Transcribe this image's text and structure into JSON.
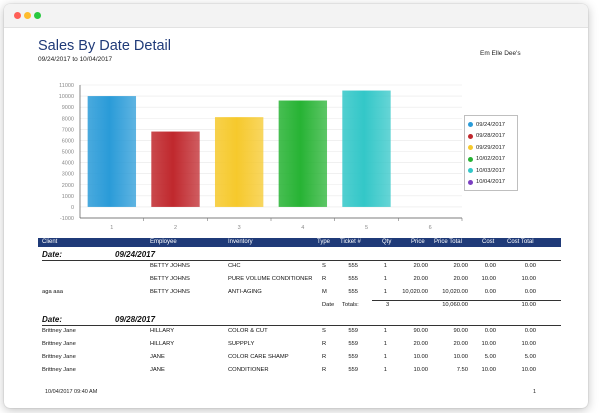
{
  "report": {
    "title": "Sales By Date Detail",
    "date_range": "09/24/2017 to 10/04/2017",
    "company": "Em Elle Dee's",
    "footer_timestamp": "10/04/2017 09:40 AM",
    "page_number": "1"
  },
  "chart_data": {
    "type": "bar",
    "categories": [
      "1",
      "2",
      "3",
      "4",
      "5",
      "6"
    ],
    "values": [
      10000,
      6800,
      8100,
      9600,
      10500,
      null
    ],
    "colors": [
      "#2a9bd8",
      "#c0282d",
      "#f6c92c",
      "#27b334",
      "#33c7c8",
      "#7b3fc1"
    ],
    "legend": [
      "09/24/2017",
      "09/28/2017",
      "09/29/2017",
      "10/02/2017",
      "10/03/2017",
      "10/04/2017"
    ],
    "y_ticks": [
      "11000",
      "10000",
      "9000",
      "8000",
      "7000",
      "6000",
      "5000",
      "4000",
      "3000",
      "2000",
      "1000",
      "0",
      "-1000"
    ],
    "ylim": [
      -1000,
      11000
    ],
    "grid": true,
    "legend_position": "right"
  },
  "table": {
    "headers": {
      "client": "Client",
      "employee": "Employee",
      "inventory": "Inventory",
      "type": "Type",
      "ticket": "Ticket #",
      "qty": "Qty",
      "price": "Price",
      "price_total": "Price Total",
      "cost": "Cost",
      "cost_total": "Cost Total"
    },
    "groups": [
      {
        "label": "Date:",
        "date": "09/24/2017",
        "rows": [
          {
            "client": "",
            "employee": "BETTY JOHNS",
            "inventory": "CHC",
            "type": "S",
            "ticket": "555",
            "qty": "1",
            "price": "20.00",
            "price_total": "20.00",
            "cost": "0.00",
            "cost_total": "0.00"
          },
          {
            "client": "",
            "employee": "BETTY JOHNS",
            "inventory": "PURE VOLUME CONDITIONER",
            "type": "R",
            "ticket": "555",
            "qty": "1",
            "price": "20.00",
            "price_total": "20.00",
            "cost": "10.00",
            "cost_total": "10.00"
          },
          {
            "client": "aga aaa",
            "employee": "BETTY JOHNS",
            "inventory": "ANTI-AGING",
            "type": "M",
            "ticket": "555",
            "qty": "1",
            "price": "10,020.00",
            "price_total": "10,020.00",
            "cost": "0.00",
            "cost_total": "0.00"
          }
        ],
        "totals": {
          "date_label": "Date",
          "label": "Totals:",
          "qty": "3",
          "price_total": "10,060.00",
          "cost_total": "10.00"
        }
      },
      {
        "label": "Date:",
        "date": "09/28/2017",
        "rows": [
          {
            "client": "Brittney Jane",
            "employee": "HILLARY",
            "inventory": "COLOR & CUT",
            "type": "S",
            "ticket": "559",
            "qty": "1",
            "price": "90.00",
            "price_total": "90.00",
            "cost": "0.00",
            "cost_total": "0.00"
          },
          {
            "client": "Brittney Jane",
            "employee": "HILLARY",
            "inventory": "SUPPPLY",
            "type": "R",
            "ticket": "559",
            "qty": "1",
            "price": "20.00",
            "price_total": "20.00",
            "cost": "10.00",
            "cost_total": "10.00"
          },
          {
            "client": "Brittney Jane",
            "employee": "JANE",
            "inventory": "COLOR CARE SHAMP",
            "type": "R",
            "ticket": "559",
            "qty": "1",
            "price": "10.00",
            "price_total": "10.00",
            "cost": "5.00",
            "cost_total": "5.00"
          },
          {
            "client": "Brittney Jane",
            "employee": "JANE",
            "inventory": "CONDITIONER",
            "type": "R",
            "ticket": "559",
            "qty": "1",
            "price": "10.00",
            "price_total": "7.50",
            "cost": "10.00",
            "cost_total": "10.00"
          }
        ]
      }
    ]
  }
}
